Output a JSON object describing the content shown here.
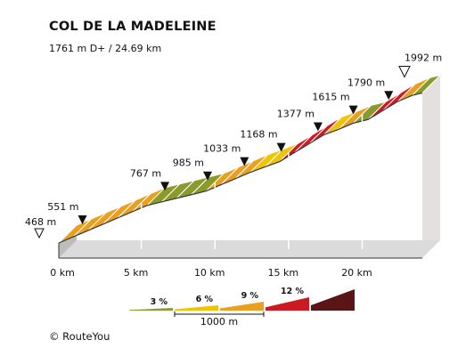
{
  "title": "COL DE LA MADELEINE",
  "subtitle": "1761 m D+ / 24.69 km",
  "copyright": "© RouteYou",
  "chart_data": {
    "type": "area",
    "title": "COL DE LA MADELEINE",
    "subtitle": "1761 m D+ / 24.69 km",
    "xlabel": "",
    "ylabel": "",
    "xlim": [
      0,
      24.69
    ],
    "distance_ticks": [
      {
        "km": 0,
        "label": "0 km"
      },
      {
        "km": 5,
        "label": "5 km"
      },
      {
        "km": 10,
        "label": "10 km"
      },
      {
        "km": 15,
        "label": "15 km"
      },
      {
        "km": 20,
        "label": "20 km"
      }
    ],
    "altitude_markers": [
      {
        "km": 0,
        "label": "468 m",
        "style": "start"
      },
      {
        "km": 1,
        "label": "551 m",
        "style": "point"
      },
      {
        "km": 6.6,
        "label": "767 m",
        "style": "point"
      },
      {
        "km": 9.5,
        "label": "985 m",
        "style": "point"
      },
      {
        "km": 12.0,
        "label": "1033 m",
        "style": "point"
      },
      {
        "km": 14.5,
        "label": "1168 m",
        "style": "point"
      },
      {
        "km": 17.0,
        "label": "1377 m",
        "style": "point"
      },
      {
        "km": 19.4,
        "label": "1615 m",
        "style": "point"
      },
      {
        "km": 21.8,
        "label": "1790 m",
        "style": "point"
      },
      {
        "km": 24.69,
        "label": "1992 m",
        "style": "summit"
      }
    ],
    "segments": [
      {
        "km_start": 0,
        "km_end": 1,
        "gradient": 7
      },
      {
        "km_start": 1,
        "km_end": 2,
        "gradient": 7
      },
      {
        "km_start": 2,
        "km_end": 3,
        "gradient": 7
      },
      {
        "km_start": 3,
        "km_end": 4,
        "gradient": 7
      },
      {
        "km_start": 4,
        "km_end": 5,
        "gradient": 7
      },
      {
        "km_start": 5,
        "km_end": 6,
        "gradient": 7
      },
      {
        "km_start": 6,
        "km_end": 7,
        "gradient": 4
      },
      {
        "km_start": 7,
        "km_end": 8,
        "gradient": 4
      },
      {
        "km_start": 8,
        "km_end": 9,
        "gradient": 4
      },
      {
        "km_start": 9,
        "km_end": 10,
        "gradient": 4
      },
      {
        "km_start": 10,
        "km_end": 11,
        "gradient": 7
      },
      {
        "km_start": 11,
        "km_end": 12,
        "gradient": 7
      },
      {
        "km_start": 12,
        "km_end": 13,
        "gradient": 7
      },
      {
        "km_start": 13,
        "km_end": 14,
        "gradient": 6
      },
      {
        "km_start": 14,
        "km_end": 15,
        "gradient": 6
      },
      {
        "km_start": 15,
        "km_end": 16,
        "gradient": 10
      },
      {
        "km_start": 16,
        "km_end": 17,
        "gradient": 10
      },
      {
        "km_start": 17,
        "km_end": 18,
        "gradient": 10
      },
      {
        "km_start": 18,
        "km_end": 19,
        "gradient": 6
      },
      {
        "km_start": 19,
        "km_end": 20,
        "gradient": 7
      },
      {
        "km_start": 20,
        "km_end": 21,
        "gradient": 4
      },
      {
        "km_start": 21,
        "km_end": 22,
        "gradient": 10
      },
      {
        "km_start": 22,
        "km_end": 23,
        "gradient": 10
      },
      {
        "km_start": 23,
        "km_end": 24,
        "gradient": 7
      },
      {
        "km_start": 24,
        "km_end": 24.69,
        "gradient": 4
      }
    ],
    "legend": {
      "placement": "bottom",
      "items": [
        {
          "label": "3 %",
          "color": "#8a9a2b"
        },
        {
          "label": "6 %",
          "color": "#f2c400"
        },
        {
          "label": "9 %",
          "color": "#e9a020"
        },
        {
          "label": "12 %",
          "color": "#cc1a22"
        },
        {
          "label": "",
          "color": "#5a1616"
        }
      ],
      "scale_label": "1000 m"
    },
    "colors": {
      "gradient_0_3": "#8a9a2b",
      "gradient_3_6": "#f2c400",
      "gradient_6_9": "#e9a020",
      "gradient_9_12": "#cc1a22",
      "gradient_12_plus": "#5a1616",
      "side_face": "#e4e0de",
      "front_face": "#bdbdbd",
      "top_edge": "#333333"
    }
  }
}
